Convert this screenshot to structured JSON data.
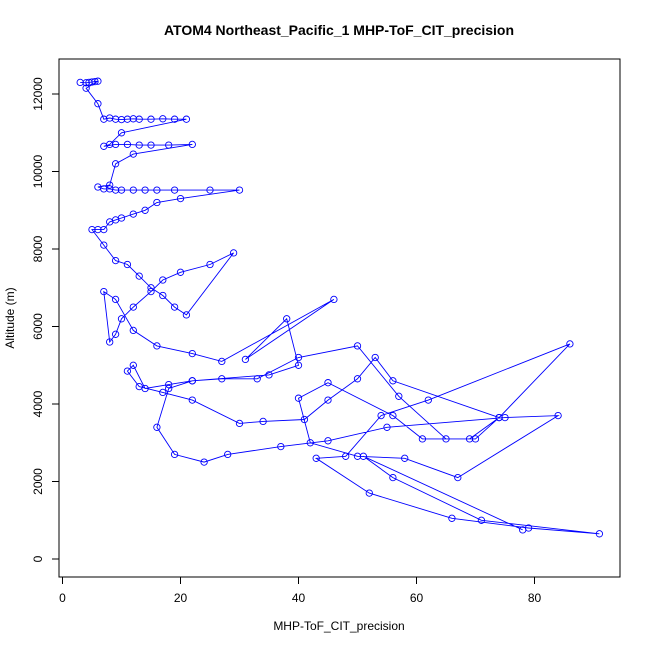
{
  "chart_data": {
    "type": "line",
    "title": "ATOM4 Northeast_Pacific_1 MHP-ToF_CIT_precision",
    "xlabel": "MHP-ToF_CIT_precision",
    "ylabel": "Altitude (m)",
    "xlim": [
      0,
      92
    ],
    "ylim": [
      0,
      12400
    ],
    "xticks": [
      0,
      20,
      40,
      60,
      80
    ],
    "yticks": [
      0,
      2000,
      4000,
      6000,
      8000,
      10000,
      12000
    ],
    "series_color": "#0000ff",
    "marker": "open-circle",
    "grid": false,
    "x": [
      3,
      4,
      4.5,
      5,
      5.5,
      6,
      4,
      6,
      7,
      8,
      9,
      10,
      11,
      12,
      13,
      15,
      17,
      19,
      21,
      10,
      8,
      7,
      9,
      11,
      13,
      15,
      18,
      22,
      12,
      9,
      8,
      6,
      7,
      8,
      9,
      10,
      12,
      14,
      16,
      19,
      25,
      30,
      20,
      16,
      14,
      12,
      10,
      9,
      8,
      7,
      6,
      5,
      7,
      9,
      11,
      13,
      15,
      17,
      19,
      21,
      29,
      25,
      20,
      17,
      15,
      12,
      10,
      9,
      8,
      7,
      9,
      12,
      16,
      22,
      27,
      46,
      31,
      38,
      40,
      35,
      22,
      18,
      14,
      12,
      11,
      13,
      17,
      22,
      30,
      34,
      41,
      45,
      50,
      53,
      56,
      74,
      70,
      61,
      56,
      45,
      40,
      42,
      50,
      58,
      67,
      84,
      75,
      55,
      45,
      37,
      28,
      24,
      19,
      16,
      18,
      22,
      27,
      33,
      40,
      50,
      57,
      65,
      69,
      74,
      86,
      62,
      54,
      48,
      43,
      52,
      66,
      79,
      91,
      71,
      56,
      51,
      78
    ]
  }
}
